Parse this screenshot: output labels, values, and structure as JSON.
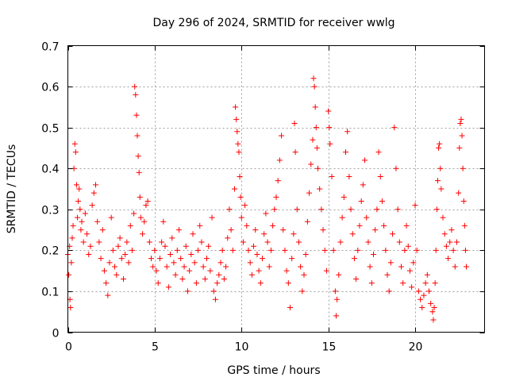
{
  "chart_data": {
    "type": "scatter",
    "title": "Day 296 of 2024, SRMTID for receiver wwlg",
    "xlabel": "GPS time / hours",
    "ylabel": "SRMTID / TECUs",
    "xlim": [
      0,
      24
    ],
    "ylim": [
      0,
      0.7
    ],
    "xticks": [
      0,
      5,
      10,
      15,
      20
    ],
    "yticks": [
      0,
      0.1,
      0.2,
      0.3,
      0.4,
      0.5,
      0.6,
      0.7
    ],
    "grid": true,
    "marker": "plus",
    "color": "#ff0000",
    "series": [
      {
        "name": "wwlg SRMTID",
        "points": [
          [
            0.0,
            0.19
          ],
          [
            0.05,
            0.14
          ],
          [
            0.1,
            0.21
          ],
          [
            0.12,
            0.08
          ],
          [
            0.15,
            0.06
          ],
          [
            0.2,
            0.17
          ],
          [
            0.25,
            0.23
          ],
          [
            0.3,
            0.26
          ],
          [
            0.35,
            0.4
          ],
          [
            0.4,
            0.46
          ],
          [
            0.45,
            0.44
          ],
          [
            0.5,
            0.36
          ],
          [
            0.55,
            0.28
          ],
          [
            0.6,
            0.32
          ],
          [
            0.65,
            0.35
          ],
          [
            0.7,
            0.3
          ],
          [
            0.75,
            0.25
          ],
          [
            0.8,
            0.27
          ],
          [
            0.9,
            0.22
          ],
          [
            1.0,
            0.29
          ],
          [
            1.1,
            0.24
          ],
          [
            1.2,
            0.19
          ],
          [
            1.3,
            0.21
          ],
          [
            1.4,
            0.31
          ],
          [
            1.5,
            0.34
          ],
          [
            1.6,
            0.36
          ],
          [
            1.7,
            0.27
          ],
          [
            1.8,
            0.22
          ],
          [
            1.9,
            0.18
          ],
          [
            2.0,
            0.25
          ],
          [
            2.1,
            0.15
          ],
          [
            2.2,
            0.12
          ],
          [
            2.3,
            0.09
          ],
          [
            2.4,
            0.17
          ],
          [
            2.5,
            0.28
          ],
          [
            2.6,
            0.2
          ],
          [
            2.7,
            0.16
          ],
          [
            2.8,
            0.14
          ],
          [
            2.9,
            0.21
          ],
          [
            3.0,
            0.23
          ],
          [
            3.1,
            0.18
          ],
          [
            3.2,
            0.13
          ],
          [
            3.3,
            0.19
          ],
          [
            3.4,
            0.22
          ],
          [
            3.5,
            0.17
          ],
          [
            3.6,
            0.26
          ],
          [
            3.7,
            0.2
          ],
          [
            3.8,
            0.29
          ],
          [
            3.85,
            0.6
          ],
          [
            3.9,
            0.58
          ],
          [
            3.95,
            0.53
          ],
          [
            4.0,
            0.48
          ],
          [
            4.05,
            0.43
          ],
          [
            4.1,
            0.39
          ],
          [
            4.15,
            0.33
          ],
          [
            4.2,
            0.28
          ],
          [
            4.3,
            0.24
          ],
          [
            4.4,
            0.27
          ],
          [
            4.5,
            0.31
          ],
          [
            4.6,
            0.32
          ],
          [
            4.7,
            0.22
          ],
          [
            4.8,
            0.18
          ],
          [
            4.9,
            0.16
          ],
          [
            5.0,
            0.2
          ],
          [
            5.1,
            0.15
          ],
          [
            5.2,
            0.12
          ],
          [
            5.3,
            0.18
          ],
          [
            5.4,
            0.22
          ],
          [
            5.5,
            0.27
          ],
          [
            5.6,
            0.21
          ],
          [
            5.7,
            0.16
          ],
          [
            5.8,
            0.11
          ],
          [
            5.9,
            0.19
          ],
          [
            6.0,
            0.23
          ],
          [
            6.1,
            0.17
          ],
          [
            6.2,
            0.14
          ],
          [
            6.3,
            0.2
          ],
          [
            6.4,
            0.25
          ],
          [
            6.5,
            0.18
          ],
          [
            6.6,
            0.13
          ],
          [
            6.7,
            0.16
          ],
          [
            6.8,
            0.21
          ],
          [
            6.9,
            0.1
          ],
          [
            7.0,
            0.15
          ],
          [
            7.1,
            0.19
          ],
          [
            7.2,
            0.24
          ],
          [
            7.3,
            0.17
          ],
          [
            7.4,
            0.12
          ],
          [
            7.5,
            0.2
          ],
          [
            7.6,
            0.26
          ],
          [
            7.7,
            0.22
          ],
          [
            7.8,
            0.16
          ],
          [
            7.9,
            0.13
          ],
          [
            8.0,
            0.18
          ],
          [
            8.1,
            0.21
          ],
          [
            8.2,
            0.15
          ],
          [
            8.3,
            0.28
          ],
          [
            8.4,
            0.1
          ],
          [
            8.5,
            0.08
          ],
          [
            8.6,
            0.12
          ],
          [
            8.7,
            0.14
          ],
          [
            8.8,
            0.17
          ],
          [
            8.9,
            0.2
          ],
          [
            9.0,
            0.13
          ],
          [
            9.1,
            0.16
          ],
          [
            9.2,
            0.23
          ],
          [
            9.3,
            0.3
          ],
          [
            9.4,
            0.25
          ],
          [
            9.5,
            0.2
          ],
          [
            9.6,
            0.35
          ],
          [
            9.65,
            0.55
          ],
          [
            9.7,
            0.52
          ],
          [
            9.75,
            0.49
          ],
          [
            9.8,
            0.46
          ],
          [
            9.85,
            0.44
          ],
          [
            9.9,
            0.38
          ],
          [
            9.95,
            0.33
          ],
          [
            10.0,
            0.28
          ],
          [
            10.1,
            0.22
          ],
          [
            10.2,
            0.31
          ],
          [
            10.3,
            0.26
          ],
          [
            10.4,
            0.2
          ],
          [
            10.5,
            0.17
          ],
          [
            10.6,
            0.14
          ],
          [
            10.7,
            0.21
          ],
          [
            10.8,
            0.25
          ],
          [
            10.9,
            0.19
          ],
          [
            11.0,
            0.15
          ],
          [
            11.1,
            0.12
          ],
          [
            11.2,
            0.18
          ],
          [
            11.3,
            0.24
          ],
          [
            11.4,
            0.29
          ],
          [
            11.5,
            0.22
          ],
          [
            11.6,
            0.16
          ],
          [
            11.7,
            0.2
          ],
          [
            11.8,
            0.26
          ],
          [
            11.9,
            0.3
          ],
          [
            12.0,
            0.33
          ],
          [
            12.1,
            0.37
          ],
          [
            12.2,
            0.42
          ],
          [
            12.3,
            0.48
          ],
          [
            12.4,
            0.25
          ],
          [
            12.5,
            0.2
          ],
          [
            12.6,
            0.15
          ],
          [
            12.7,
            0.12
          ],
          [
            12.8,
            0.06
          ],
          [
            12.9,
            0.18
          ],
          [
            13.0,
            0.24
          ],
          [
            13.05,
            0.51
          ],
          [
            13.1,
            0.44
          ],
          [
            13.2,
            0.3
          ],
          [
            13.3,
            0.22
          ],
          [
            13.4,
            0.16
          ],
          [
            13.5,
            0.1
          ],
          [
            13.6,
            0.14
          ],
          [
            13.7,
            0.19
          ],
          [
            13.8,
            0.27
          ],
          [
            13.9,
            0.34
          ],
          [
            14.0,
            0.41
          ],
          [
            14.1,
            0.47
          ],
          [
            14.15,
            0.62
          ],
          [
            14.2,
            0.6
          ],
          [
            14.25,
            0.55
          ],
          [
            14.3,
            0.5
          ],
          [
            14.35,
            0.45
          ],
          [
            14.4,
            0.4
          ],
          [
            14.5,
            0.35
          ],
          [
            14.6,
            0.3
          ],
          [
            14.7,
            0.25
          ],
          [
            14.8,
            0.2
          ],
          [
            14.9,
            0.15
          ],
          [
            15.0,
            0.54
          ],
          [
            15.05,
            0.5
          ],
          [
            15.1,
            0.46
          ],
          [
            15.2,
            0.38
          ],
          [
            15.3,
            0.2
          ],
          [
            15.4,
            0.1
          ],
          [
            15.45,
            0.04
          ],
          [
            15.5,
            0.08
          ],
          [
            15.6,
            0.14
          ],
          [
            15.7,
            0.22
          ],
          [
            15.8,
            0.28
          ],
          [
            15.9,
            0.33
          ],
          [
            16.0,
            0.44
          ],
          [
            16.1,
            0.49
          ],
          [
            16.2,
            0.38
          ],
          [
            16.3,
            0.3
          ],
          [
            16.4,
            0.24
          ],
          [
            16.5,
            0.18
          ],
          [
            16.6,
            0.13
          ],
          [
            16.7,
            0.2
          ],
          [
            16.8,
            0.26
          ],
          [
            16.9,
            0.32
          ],
          [
            17.0,
            0.36
          ],
          [
            17.1,
            0.42
          ],
          [
            17.2,
            0.28
          ],
          [
            17.3,
            0.22
          ],
          [
            17.4,
            0.16
          ],
          [
            17.5,
            0.12
          ],
          [
            17.6,
            0.19
          ],
          [
            17.7,
            0.25
          ],
          [
            17.8,
            0.3
          ],
          [
            17.9,
            0.44
          ],
          [
            18.0,
            0.38
          ],
          [
            18.1,
            0.32
          ],
          [
            18.2,
            0.26
          ],
          [
            18.3,
            0.2
          ],
          [
            18.4,
            0.14
          ],
          [
            18.5,
            0.1
          ],
          [
            18.6,
            0.17
          ],
          [
            18.7,
            0.24
          ],
          [
            18.8,
            0.5
          ],
          [
            18.9,
            0.4
          ],
          [
            19.0,
            0.3
          ],
          [
            19.1,
            0.22
          ],
          [
            19.2,
            0.16
          ],
          [
            19.3,
            0.12
          ],
          [
            19.4,
            0.2
          ],
          [
            19.5,
            0.26
          ],
          [
            19.6,
            0.21
          ],
          [
            19.7,
            0.15
          ],
          [
            19.8,
            0.11
          ],
          [
            19.9,
            0.17
          ],
          [
            20.0,
            0.31
          ],
          [
            20.1,
            0.2
          ],
          [
            20.2,
            0.1
          ],
          [
            20.3,
            0.08
          ],
          [
            20.4,
            0.06
          ],
          [
            20.5,
            0.09
          ],
          [
            20.6,
            0.12
          ],
          [
            20.7,
            0.14
          ],
          [
            20.8,
            0.1
          ],
          [
            20.9,
            0.07
          ],
          [
            21.0,
            0.05
          ],
          [
            21.05,
            0.03
          ],
          [
            21.1,
            0.06
          ],
          [
            21.15,
            0.12
          ],
          [
            21.2,
            0.2
          ],
          [
            21.25,
            0.3
          ],
          [
            21.3,
            0.37
          ],
          [
            21.35,
            0.45
          ],
          [
            21.4,
            0.46
          ],
          [
            21.45,
            0.4
          ],
          [
            21.5,
            0.35
          ],
          [
            21.6,
            0.28
          ],
          [
            21.7,
            0.24
          ],
          [
            21.8,
            0.21
          ],
          [
            21.9,
            0.18
          ],
          [
            22.0,
            0.22
          ],
          [
            22.1,
            0.25
          ],
          [
            22.2,
            0.2
          ],
          [
            22.3,
            0.16
          ],
          [
            22.4,
            0.22
          ],
          [
            22.5,
            0.34
          ],
          [
            22.55,
            0.45
          ],
          [
            22.6,
            0.51
          ],
          [
            22.65,
            0.52
          ],
          [
            22.7,
            0.48
          ],
          [
            22.75,
            0.4
          ],
          [
            22.8,
            0.32
          ],
          [
            22.85,
            0.26
          ],
          [
            22.9,
            0.2
          ],
          [
            22.95,
            0.16
          ]
        ]
      }
    ]
  }
}
